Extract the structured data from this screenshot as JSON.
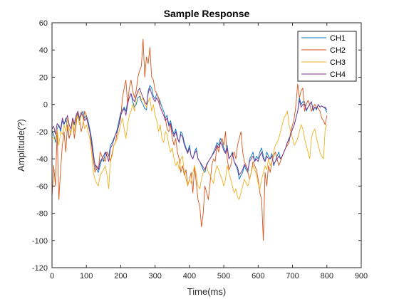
{
  "chart_data": {
    "type": "line",
    "title": "Sample Response",
    "xlabel": "Time(ms)",
    "ylabel": "Amplitude(?)",
    "xlim": [
      0,
      900
    ],
    "ylim": [
      -120,
      60
    ],
    "xticks": [
      0,
      100,
      200,
      300,
      400,
      500,
      600,
      700,
      800,
      900
    ],
    "yticks": [
      -120,
      -100,
      -80,
      -60,
      -40,
      -20,
      0,
      20,
      40,
      60
    ],
    "grid": false,
    "legend_position": "top-right",
    "x_step": 5,
    "x_start": 0,
    "series": [
      {
        "name": "CH1",
        "color": "#0072BD",
        "values": [
          -20,
          -22,
          -28,
          -18,
          -15,
          -20,
          -12,
          -15,
          -10,
          -18,
          -25,
          -20,
          -12,
          -15,
          -10,
          -6,
          -12,
          -8,
          -5,
          -10,
          -8,
          -12,
          -18,
          -25,
          -35,
          -45,
          -48,
          -50,
          -45,
          -40,
          -42,
          -36,
          -35,
          -38,
          -30,
          -28,
          -25,
          -22,
          -18,
          -12,
          -6,
          -4,
          -2,
          -5,
          2,
          5,
          8,
          2,
          -2,
          0,
          5,
          6,
          2,
          0,
          -3,
          -4,
          10,
          14,
          12,
          6,
          4,
          8,
          5,
          2,
          -2,
          -5,
          -10,
          -8,
          -15,
          -12,
          -18,
          -22,
          -18,
          -24,
          -28,
          -20,
          -22,
          -28,
          -32,
          -35,
          -30,
          -38,
          -40,
          -35,
          -32,
          -40,
          -42,
          -45,
          -48,
          -50,
          -45,
          -42,
          -40,
          -38,
          -35,
          -32,
          -28,
          -30,
          -25,
          -28,
          -32,
          -35,
          -30,
          -40,
          -38,
          -35,
          -42,
          -45,
          -48,
          -55,
          -52,
          -50,
          -45,
          -48,
          -50,
          -40,
          -38,
          -35,
          -42,
          -38,
          -40,
          -35,
          -32,
          -38,
          -42,
          -35,
          -38,
          -40,
          -36,
          -45,
          -42,
          -38,
          -35,
          -40,
          -38,
          -35,
          -32,
          -28,
          -25,
          -22,
          -18,
          -15,
          -10,
          -5,
          5,
          0,
          2,
          2,
          -5,
          -2,
          0,
          2,
          -5,
          -2,
          -4,
          0,
          -2,
          -1,
          -2,
          -3,
          -6
        ]
      },
      {
        "name": "CH2",
        "color": "#D95319",
        "values": [
          -68,
          -45,
          -60,
          -20,
          -70,
          -48,
          -30,
          -20,
          -35,
          -15,
          -25,
          -20,
          -10,
          -25,
          -15,
          -5,
          -10,
          -20,
          -15,
          -5,
          -8,
          -15,
          -20,
          -30,
          -40,
          -50,
          -45,
          -48,
          -35,
          -38,
          -40,
          -42,
          -35,
          -38,
          -42,
          -36,
          -30,
          -28,
          -20,
          -15,
          -10,
          5,
          12,
          18,
          0,
          12,
          18,
          10,
          5,
          10,
          20,
          25,
          28,
          48,
          20,
          35,
          30,
          42,
          20,
          18,
          10,
          8,
          5,
          -2,
          -5,
          -8,
          -10,
          -18,
          -20,
          -15,
          -25,
          -30,
          -25,
          -35,
          -40,
          -50,
          -45,
          -52,
          -48,
          -60,
          -55,
          -50,
          -65,
          -45,
          -58,
          -70,
          -75,
          -90,
          -80,
          -60,
          -65,
          -70,
          -58,
          -45,
          -40,
          -42,
          -30,
          -35,
          -28,
          -25,
          -30,
          -20,
          -40,
          -48,
          -45,
          -38,
          -35,
          -40,
          -30,
          -25,
          -20,
          -35,
          -42,
          -45,
          -50,
          -55,
          -50,
          -42,
          -45,
          -48,
          -55,
          -65,
          -70,
          -100,
          -50,
          -60,
          -45,
          -50,
          -42,
          -38,
          -35,
          -40,
          -45,
          -42,
          -38,
          -35,
          -32,
          -30,
          -28,
          -20,
          -15,
          -10,
          0,
          15,
          5,
          10,
          12,
          -5,
          0,
          3,
          0,
          -5,
          -2,
          0,
          -2,
          -3,
          -5,
          -10,
          -12,
          -15,
          -8
        ]
      },
      {
        "name": "CH3",
        "color": "#EDB120",
        "values": [
          -24,
          -25,
          -26,
          -18,
          -30,
          -20,
          -22,
          -15,
          -20,
          -10,
          -18,
          -22,
          -12,
          -20,
          -10,
          -8,
          -15,
          -5,
          -10,
          -18,
          -15,
          -20,
          -25,
          -35,
          -50,
          -55,
          -58,
          -60,
          -52,
          -50,
          -48,
          -45,
          -52,
          -62,
          -40,
          -38,
          -30,
          -28,
          -25,
          -20,
          -15,
          -10,
          -18,
          -25,
          -15,
          -8,
          -5,
          0,
          -5,
          5,
          10,
          8,
          3,
          5,
          0,
          -2,
          2,
          5,
          -5,
          0,
          -8,
          -12,
          -20,
          -15,
          -25,
          -28,
          -20,
          -22,
          -30,
          -35,
          -32,
          -40,
          -45,
          -42,
          -48,
          -40,
          -38,
          -50,
          -55,
          -60,
          -55,
          -58,
          -50,
          -45,
          -52,
          -60,
          -62,
          -55,
          -50,
          -48,
          -45,
          -50,
          -52,
          -55,
          -58,
          -50,
          -45,
          -48,
          -52,
          -55,
          -60,
          -55,
          -45,
          -50,
          -55,
          -60,
          -65,
          -62,
          -68,
          -70,
          -65,
          -60,
          -55,
          -58,
          -60,
          -55,
          -50,
          -45,
          -48,
          -52,
          -58,
          -62,
          -55,
          -50,
          -45,
          -48,
          -40,
          -45,
          -42,
          -35,
          -30,
          -28,
          -25,
          -20,
          -15,
          -10,
          -8,
          -5,
          -15,
          -20,
          -25,
          -30,
          -28,
          -25,
          -20,
          -15,
          -18,
          -25,
          -30,
          -35,
          -40,
          -25,
          -20,
          -18,
          -25,
          -30,
          -35,
          -38,
          -40,
          -18,
          -15
        ]
      },
      {
        "name": "CH4",
        "color": "#7E2F8E",
        "values": [
          -18,
          -16,
          -22,
          -14,
          -16,
          -18,
          -10,
          -14,
          -12,
          -8,
          -15,
          -18,
          -10,
          -14,
          -8,
          -5,
          -10,
          -6,
          -8,
          -12,
          -10,
          -14,
          -20,
          -28,
          -38,
          -44,
          -46,
          -48,
          -42,
          -40,
          -38,
          -35,
          -38,
          -42,
          -32,
          -30,
          -26,
          -22,
          -20,
          -15,
          -8,
          -5,
          -3,
          -8,
          0,
          5,
          8,
          4,
          2,
          6,
          10,
          12,
          8,
          5,
          2,
          0,
          8,
          12,
          8,
          4,
          2,
          5,
          2,
          -2,
          -5,
          -8,
          -12,
          -10,
          -16,
          -14,
          -20,
          -24,
          -20,
          -25,
          -28,
          -22,
          -24,
          -30,
          -33,
          -36,
          -32,
          -38,
          -40,
          -36,
          -34,
          -40,
          -42,
          -44,
          -46,
          -48,
          -44,
          -42,
          -40,
          -38,
          -36,
          -34,
          -30,
          -32,
          -28,
          -30,
          -34,
          -36,
          -32,
          -40,
          -38,
          -36,
          -42,
          -44,
          -46,
          -52,
          -50,
          -48,
          -44,
          -46,
          -48,
          -42,
          -40,
          -38,
          -42,
          -40,
          -42,
          -38,
          -35,
          -40,
          -42,
          -38,
          -40,
          -40,
          -38,
          -44,
          -42,
          -40,
          -38,
          -40,
          -38,
          -35,
          -32,
          -28,
          -26,
          -22,
          -18,
          -15,
          -10,
          -5,
          3,
          -2,
          0,
          0,
          -4,
          -2,
          0,
          2,
          -4,
          -2,
          -3,
          0,
          -2,
          -1,
          -2,
          -2,
          -4
        ]
      }
    ]
  }
}
